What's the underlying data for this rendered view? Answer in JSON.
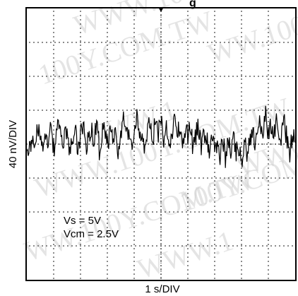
{
  "chart_data": {
    "type": "line",
    "title": "",
    "title_fragment": "g",
    "xlabel": "1 s/DIV",
    "ylabel": "40 nV/DIV",
    "annotations": [
      "Vs = 5V",
      "Vcm = 2.5V"
    ],
    "watermark": [
      "WWW.100Y.COM.TW",
      "100Y.COM.TW",
      "WW.100Y.COM.TW",
      "WWW.1"
    ],
    "grid": true,
    "x_divisions": 10,
    "y_divisions": 8,
    "xlim": [
      0,
      10
    ],
    "ylim": [
      -160,
      160
    ],
    "x_unit": "s",
    "y_unit": "nV",
    "series": [
      {
        "x": [
          0.0,
          0.1,
          0.2,
          0.3,
          0.4,
          0.5,
          0.6,
          0.7,
          0.8,
          0.9,
          1.0,
          1.1,
          1.2,
          1.3,
          1.4,
          1.5,
          1.6,
          1.7,
          1.8,
          1.9,
          2.0,
          2.1,
          2.2,
          2.3,
          2.4,
          2.5,
          2.6,
          2.7,
          2.8,
          2.9,
          3.0,
          3.1,
          3.2,
          3.3,
          3.4,
          3.5,
          3.6,
          3.7,
          3.8,
          3.9,
          4.0,
          4.1,
          4.2,
          4.3,
          4.4,
          4.5,
          4.6,
          4.7,
          4.8,
          4.9,
          5.0,
          5.1,
          5.2,
          5.3,
          5.4,
          5.5,
          5.6,
          5.7,
          5.8,
          5.9,
          6.0,
          6.1,
          6.2,
          6.3,
          6.4,
          6.5,
          6.6,
          6.7,
          6.8,
          6.9,
          7.0,
          7.1,
          7.2,
          7.3,
          7.4,
          7.5,
          7.6,
          7.7,
          7.8,
          7.9,
          8.0,
          8.1,
          8.2,
          8.3,
          8.4,
          8.5,
          8.6,
          8.7,
          8.8,
          8.9,
          9.0,
          9.1,
          9.2,
          9.3,
          9.4,
          9.5,
          9.6,
          9.7,
          9.8,
          9.9,
          10.0
        ],
        "y": [
          5,
          -8,
          12,
          -3,
          18,
          6,
          -12,
          14,
          2,
          22,
          -6,
          10,
          26,
          -2,
          8,
          20,
          -14,
          4,
          16,
          -8,
          12,
          24,
          -4,
          10,
          18,
          2,
          28,
          -6,
          12,
          20,
          -2,
          16,
          6,
          22,
          -10,
          14,
          26,
          4,
          18,
          -4,
          10,
          30,
          8,
          20,
          -6,
          16,
          24,
          2,
          34,
          12,
          28,
          6,
          20,
          -4,
          14,
          26,
          10,
          22,
          0,
          16,
          8,
          24,
          -8,
          12,
          20,
          -2,
          14,
          6,
          -14,
          10,
          -6,
          4,
          -16,
          12,
          -20,
          2,
          -8,
          10,
          -12,
          -2,
          -24,
          6,
          -10,
          4,
          18,
          -4,
          14,
          26,
          8,
          34,
          12,
          22,
          6,
          30,
          -2,
          14,
          24,
          4,
          -10,
          10,
          2
        ]
      }
    ]
  }
}
